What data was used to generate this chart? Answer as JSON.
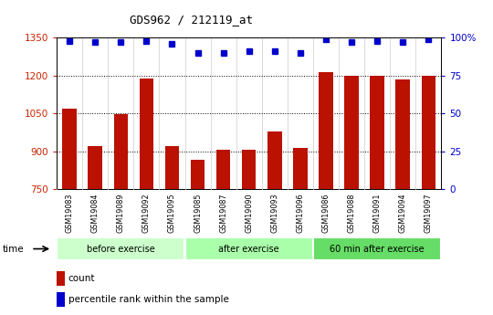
{
  "title": "GDS962 / 212119_at",
  "categories": [
    "GSM19083",
    "GSM19084",
    "GSM19089",
    "GSM19092",
    "GSM19095",
    "GSM19085",
    "GSM19087",
    "GSM19090",
    "GSM19093",
    "GSM19096",
    "GSM19086",
    "GSM19088",
    "GSM19091",
    "GSM19094",
    "GSM19097"
  ],
  "bar_values": [
    1070,
    922,
    1048,
    1188,
    922,
    865,
    905,
    905,
    980,
    912,
    1213,
    1200,
    1200,
    1185,
    1200
  ],
  "blue_values": [
    98,
    97,
    97,
    98,
    96,
    90,
    90,
    91,
    91,
    90,
    99,
    97,
    98,
    97,
    99
  ],
  "groups": [
    {
      "label": "before exercise",
      "start": 0,
      "end": 5,
      "color": "#ccffcc"
    },
    {
      "label": "after exercise",
      "start": 5,
      "end": 10,
      "color": "#aaffaa"
    },
    {
      "label": "60 min after exercise",
      "start": 10,
      "end": 15,
      "color": "#66dd66"
    }
  ],
  "ylim_left": [
    750,
    1350
  ],
  "ylim_right": [
    0,
    100
  ],
  "bar_color": "#bb1100",
  "dot_color": "#0000cc",
  "bg_color": "#ffffff",
  "xtick_bg": "#cccccc",
  "xlabel_color": "#cc2200",
  "ylabel_right_color": "#0000cc",
  "time_label": "time",
  "legend_count": "count",
  "legend_percentile": "percentile rank within the sample",
  "yticks_left": [
    750,
    900,
    1050,
    1200,
    1350
  ],
  "yticks_right": [
    0,
    25,
    50,
    75,
    100
  ],
  "grid_values": [
    900,
    1050,
    1200
  ]
}
